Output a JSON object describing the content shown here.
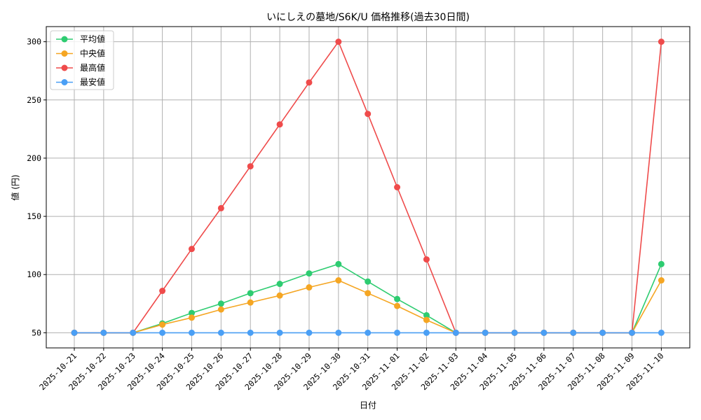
{
  "chart_data": {
    "type": "line",
    "title": "いにしえの墓地/S6K/U 価格推移(過去30日間)",
    "xlabel": "日付",
    "ylabel": "値 (円)",
    "ylim": [
      37,
      313
    ],
    "yticks": [
      50,
      100,
      150,
      200,
      250,
      300
    ],
    "grid": true,
    "legend_position": "top-left",
    "categories": [
      "2025-10-21",
      "2025-10-22",
      "2025-10-23",
      "2025-10-24",
      "2025-10-25",
      "2025-10-26",
      "2025-10-27",
      "2025-10-28",
      "2025-10-29",
      "2025-10-30",
      "2025-10-31",
      "2025-11-01",
      "2025-11-02",
      "2025-11-03",
      "2025-11-04",
      "2025-11-05",
      "2025-11-06",
      "2025-11-07",
      "2025-11-08",
      "2025-11-09",
      "2025-11-10"
    ],
    "series": [
      {
        "name": "平均値",
        "color": "#2ecc71",
        "values": [
          50,
          50,
          50,
          58,
          67,
          75,
          84,
          92,
          101,
          109,
          94,
          79,
          65,
          50,
          50,
          50,
          50,
          50,
          50,
          50,
          109
        ]
      },
      {
        "name": "中央値",
        "color": "#f5a623",
        "values": [
          50,
          50,
          50,
          57,
          63,
          70,
          76,
          82,
          89,
          95,
          84,
          73,
          61,
          50,
          50,
          50,
          50,
          50,
          50,
          50,
          95
        ]
      },
      {
        "name": "最高値",
        "color": "#ef4b4b",
        "values": [
          50,
          50,
          50,
          86,
          122,
          157,
          193,
          229,
          265,
          300,
          238,
          175,
          113,
          50,
          50,
          50,
          50,
          50,
          50,
          50,
          300
        ]
      },
      {
        "name": "最安値",
        "color": "#4a9ff5",
        "values": [
          50,
          50,
          50,
          50,
          50,
          50,
          50,
          50,
          50,
          50,
          50,
          50,
          50,
          50,
          50,
          50,
          50,
          50,
          50,
          50,
          50
        ]
      }
    ]
  }
}
